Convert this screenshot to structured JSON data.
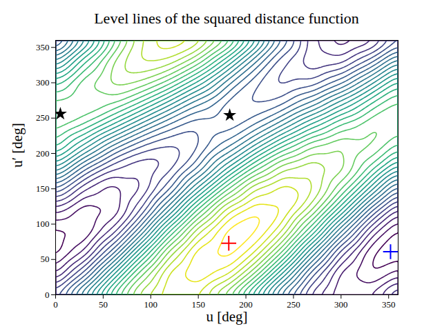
{
  "chart_data": {
    "type": "contour",
    "title": "Level lines of the squared distance function",
    "x_label": "u [deg]",
    "y_label": "u′ [deg]",
    "xlim": [
      0,
      360
    ],
    "ylim": [
      0,
      360
    ],
    "xticks": [
      0,
      50,
      100,
      150,
      200,
      250,
      300,
      350
    ],
    "yticks": [
      0,
      50,
      100,
      150,
      200,
      250,
      300,
      350
    ],
    "color": "viridis",
    "grid_u": [
      0,
      30,
      60,
      90,
      120,
      150,
      180,
      210,
      240,
      270,
      300,
      330,
      360
    ],
    "grid_u_prime": [
      0,
      30,
      60,
      90,
      120,
      150,
      180,
      210,
      240,
      270,
      300,
      330,
      360
    ],
    "d2": [
      [
        0.67,
        0.25,
        0.02,
        0.05,
        0.34,
        0.81,
        1.33,
        1.76,
        1.98,
        1.95,
        1.66,
        1.19,
        0.67
      ],
      [
        1.23,
        0.72,
        0.29,
        0.06,
        0.1,
        0.39,
        0.85,
        1.37,
        1.8,
        2.02,
        1.99,
        1.7,
        1.23
      ],
      [
        1.82,
        1.36,
        0.84,
        0.41,
        0.18,
        0.22,
        0.51,
        0.97,
        1.49,
        1.92,
        2.15,
        2.11,
        1.82
      ],
      [
        2.28,
        1.99,
        1.53,
        1.01,
        0.58,
        0.36,
        0.39,
        0.68,
        1.15,
        1.66,
        2.09,
        2.32,
        2.28
      ],
      [
        2.5,
        2.46,
        2.17,
        1.71,
        1.19,
        0.76,
        0.53,
        0.57,
        0.86,
        1.32,
        1.84,
        2.27,
        2.5
      ],
      [
        2.4,
        2.63,
        2.59,
        2.3,
        1.84,
        1.32,
        0.89,
        0.67,
        0.7,
        0.99,
        1.46,
        1.97,
        2.4
      ],
      [
        2.03,
        2.46,
        2.68,
        2.65,
        2.36,
        1.89,
        1.37,
        0.95,
        0.72,
        0.75,
        1.04,
        1.51,
        2.03
      ],
      [
        1.47,
        1.99,
        2.41,
        2.64,
        2.61,
        2.32,
        1.85,
        1.33,
        0.9,
        0.68,
        0.71,
        1.0,
        1.47
      ],
      [
        0.88,
        1.35,
        1.86,
        2.29,
        2.52,
        2.48,
        2.19,
        1.73,
        1.21,
        0.78,
        0.55,
        0.59,
        0.88
      ],
      [
        0.42,
        0.71,
        1.17,
        1.69,
        2.12,
        2.34,
        2.31,
        2.02,
        1.55,
        1.04,
        0.61,
        0.38,
        0.42
      ],
      [
        0.2,
        0.24,
        0.53,
        1.0,
        1.51,
        1.94,
        2.17,
        2.13,
        1.84,
        1.38,
        0.86,
        0.43,
        0.2
      ],
      [
        0.3,
        0.07,
        0.11,
        0.4,
        0.86,
        1.38,
        1.81,
        2.04,
        2.0,
        1.71,
        1.24,
        0.73,
        0.3
      ],
      [
        0.67,
        0.25,
        0.02,
        0.05,
        0.34,
        0.81,
        1.33,
        1.76,
        1.98,
        1.95,
        1.66,
        1.19,
        0.67
      ]
    ],
    "levels": [
      0.1,
      0.2,
      0.3,
      0.4,
      0.5,
      0.6,
      0.7,
      0.8,
      0.9,
      1.0,
      1.1,
      1.2,
      1.3,
      1.4,
      1.5,
      1.6,
      1.7,
      1.8,
      1.9,
      2.0,
      2.1,
      2.2,
      2.3,
      2.4,
      2.5,
      2.6
    ],
    "markers": [
      {
        "u": 182,
        "u_prime": 73,
        "marker": "plus",
        "color": "red"
      },
      {
        "u": 352,
        "u_prime": 61,
        "marker": "plus",
        "color": "blue"
      },
      {
        "u": 5,
        "u_prime": 256,
        "marker": "star",
        "color": "black"
      },
      {
        "u": 183,
        "u_prime": 254,
        "marker": "star",
        "color": "black"
      }
    ]
  }
}
